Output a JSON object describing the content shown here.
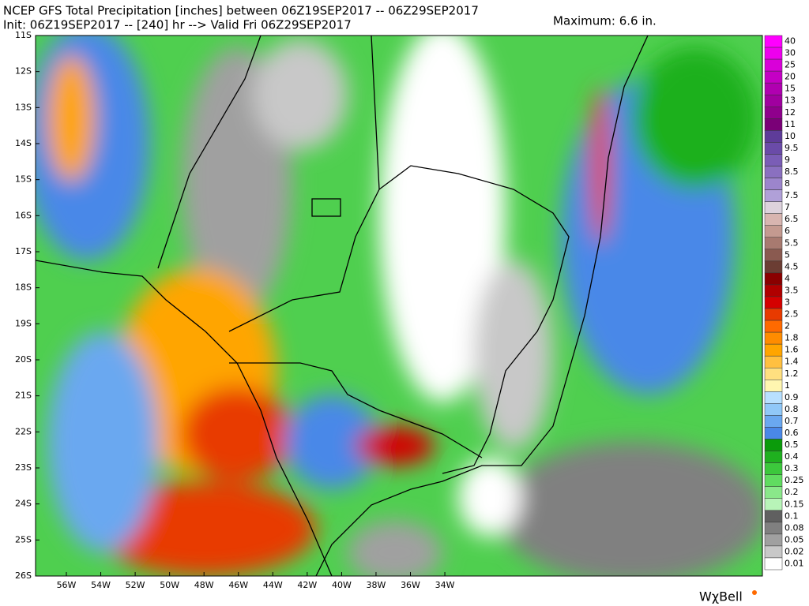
{
  "header": {
    "title": "NCEP GFS Total Precipitation [inches] between 06Z19SEP2017 -- 06Z29SEP2017",
    "subtitle": "Init: 06Z19SEP2017 -- [240] hr --> Valid Fri 06Z29SEP2017",
    "maximum": "Maximum: 6.6 in."
  },
  "latitudes": [
    "11S",
    "12S",
    "13S",
    "14S",
    "15S",
    "16S",
    "17S",
    "18S",
    "19S",
    "20S",
    "21S",
    "22S",
    "23S",
    "24S",
    "25S",
    "26S"
  ],
  "longitudes": [
    "56W",
    "54W",
    "52W",
    "50W",
    "48W",
    "46W",
    "44W",
    "42W",
    "40W",
    "38W",
    "36W",
    "34W"
  ],
  "colorbar": [
    {
      "label": "40",
      "color": "#ff00ff"
    },
    {
      "label": "30",
      "color": "#ee00ee"
    },
    {
      "label": "25",
      "color": "#d900d9"
    },
    {
      "label": "20",
      "color": "#c400c4"
    },
    {
      "label": "15",
      "color": "#b000b0"
    },
    {
      "label": "13",
      "color": "#a0009f"
    },
    {
      "label": "12",
      "color": "#8f008c"
    },
    {
      "label": "11",
      "color": "#7a0077"
    },
    {
      "label": "10",
      "color": "#5e3c99"
    },
    {
      "label": "9.5",
      "color": "#6a4ba8"
    },
    {
      "label": "9",
      "color": "#7a5db6"
    },
    {
      "label": "8.5",
      "color": "#8a70c0"
    },
    {
      "label": "8",
      "color": "#9c85cc"
    },
    {
      "label": "7.5",
      "color": "#b0a0d8"
    },
    {
      "label": "7",
      "color": "#ddd2dc"
    },
    {
      "label": "6.5",
      "color": "#d8b5b0"
    },
    {
      "label": "6",
      "color": "#c49a90"
    },
    {
      "label": "5.5",
      "color": "#a87a70"
    },
    {
      "label": "5",
      "color": "#8a5a50"
    },
    {
      "label": "4.5",
      "color": "#6b3d33"
    },
    {
      "label": "4",
      "color": "#8a0000"
    },
    {
      "label": "3.5",
      "color": "#b00000"
    },
    {
      "label": "3",
      "color": "#d40000"
    },
    {
      "label": "2.5",
      "color": "#e83a00"
    },
    {
      "label": "2",
      "color": "#ff6a00"
    },
    {
      "label": "1.8",
      "color": "#ff8c00"
    },
    {
      "label": "1.6",
      "color": "#ffa500"
    },
    {
      "label": "1.4",
      "color": "#ffc040"
    },
    {
      "label": "1.2",
      "color": "#ffe080"
    },
    {
      "label": "1",
      "color": "#fff6b0"
    },
    {
      "label": "0.9",
      "color": "#b8e0ff"
    },
    {
      "label": "0.8",
      "color": "#90c8f8"
    },
    {
      "label": "0.7",
      "color": "#6aa8f0"
    },
    {
      "label": "0.6",
      "color": "#4a88e8"
    },
    {
      "label": "0.5",
      "color": "#0b9b0b"
    },
    {
      "label": "0.4",
      "color": "#1fb01f"
    },
    {
      "label": "0.3",
      "color": "#3cc83c"
    },
    {
      "label": "0.25",
      "color": "#60dc60"
    },
    {
      "label": "0.2",
      "color": "#8ae88a"
    },
    {
      "label": "0.15",
      "color": "#b8f4b8"
    },
    {
      "label": "0.1",
      "color": "#606060"
    },
    {
      "label": "0.08",
      "color": "#808080"
    },
    {
      "label": "0.05",
      "color": "#a0a0a0"
    },
    {
      "label": "0.02",
      "color": "#c8c8c8"
    },
    {
      "label": "0.01",
      "color": "#ffffff"
    }
  ],
  "logo": "WχBell"
}
